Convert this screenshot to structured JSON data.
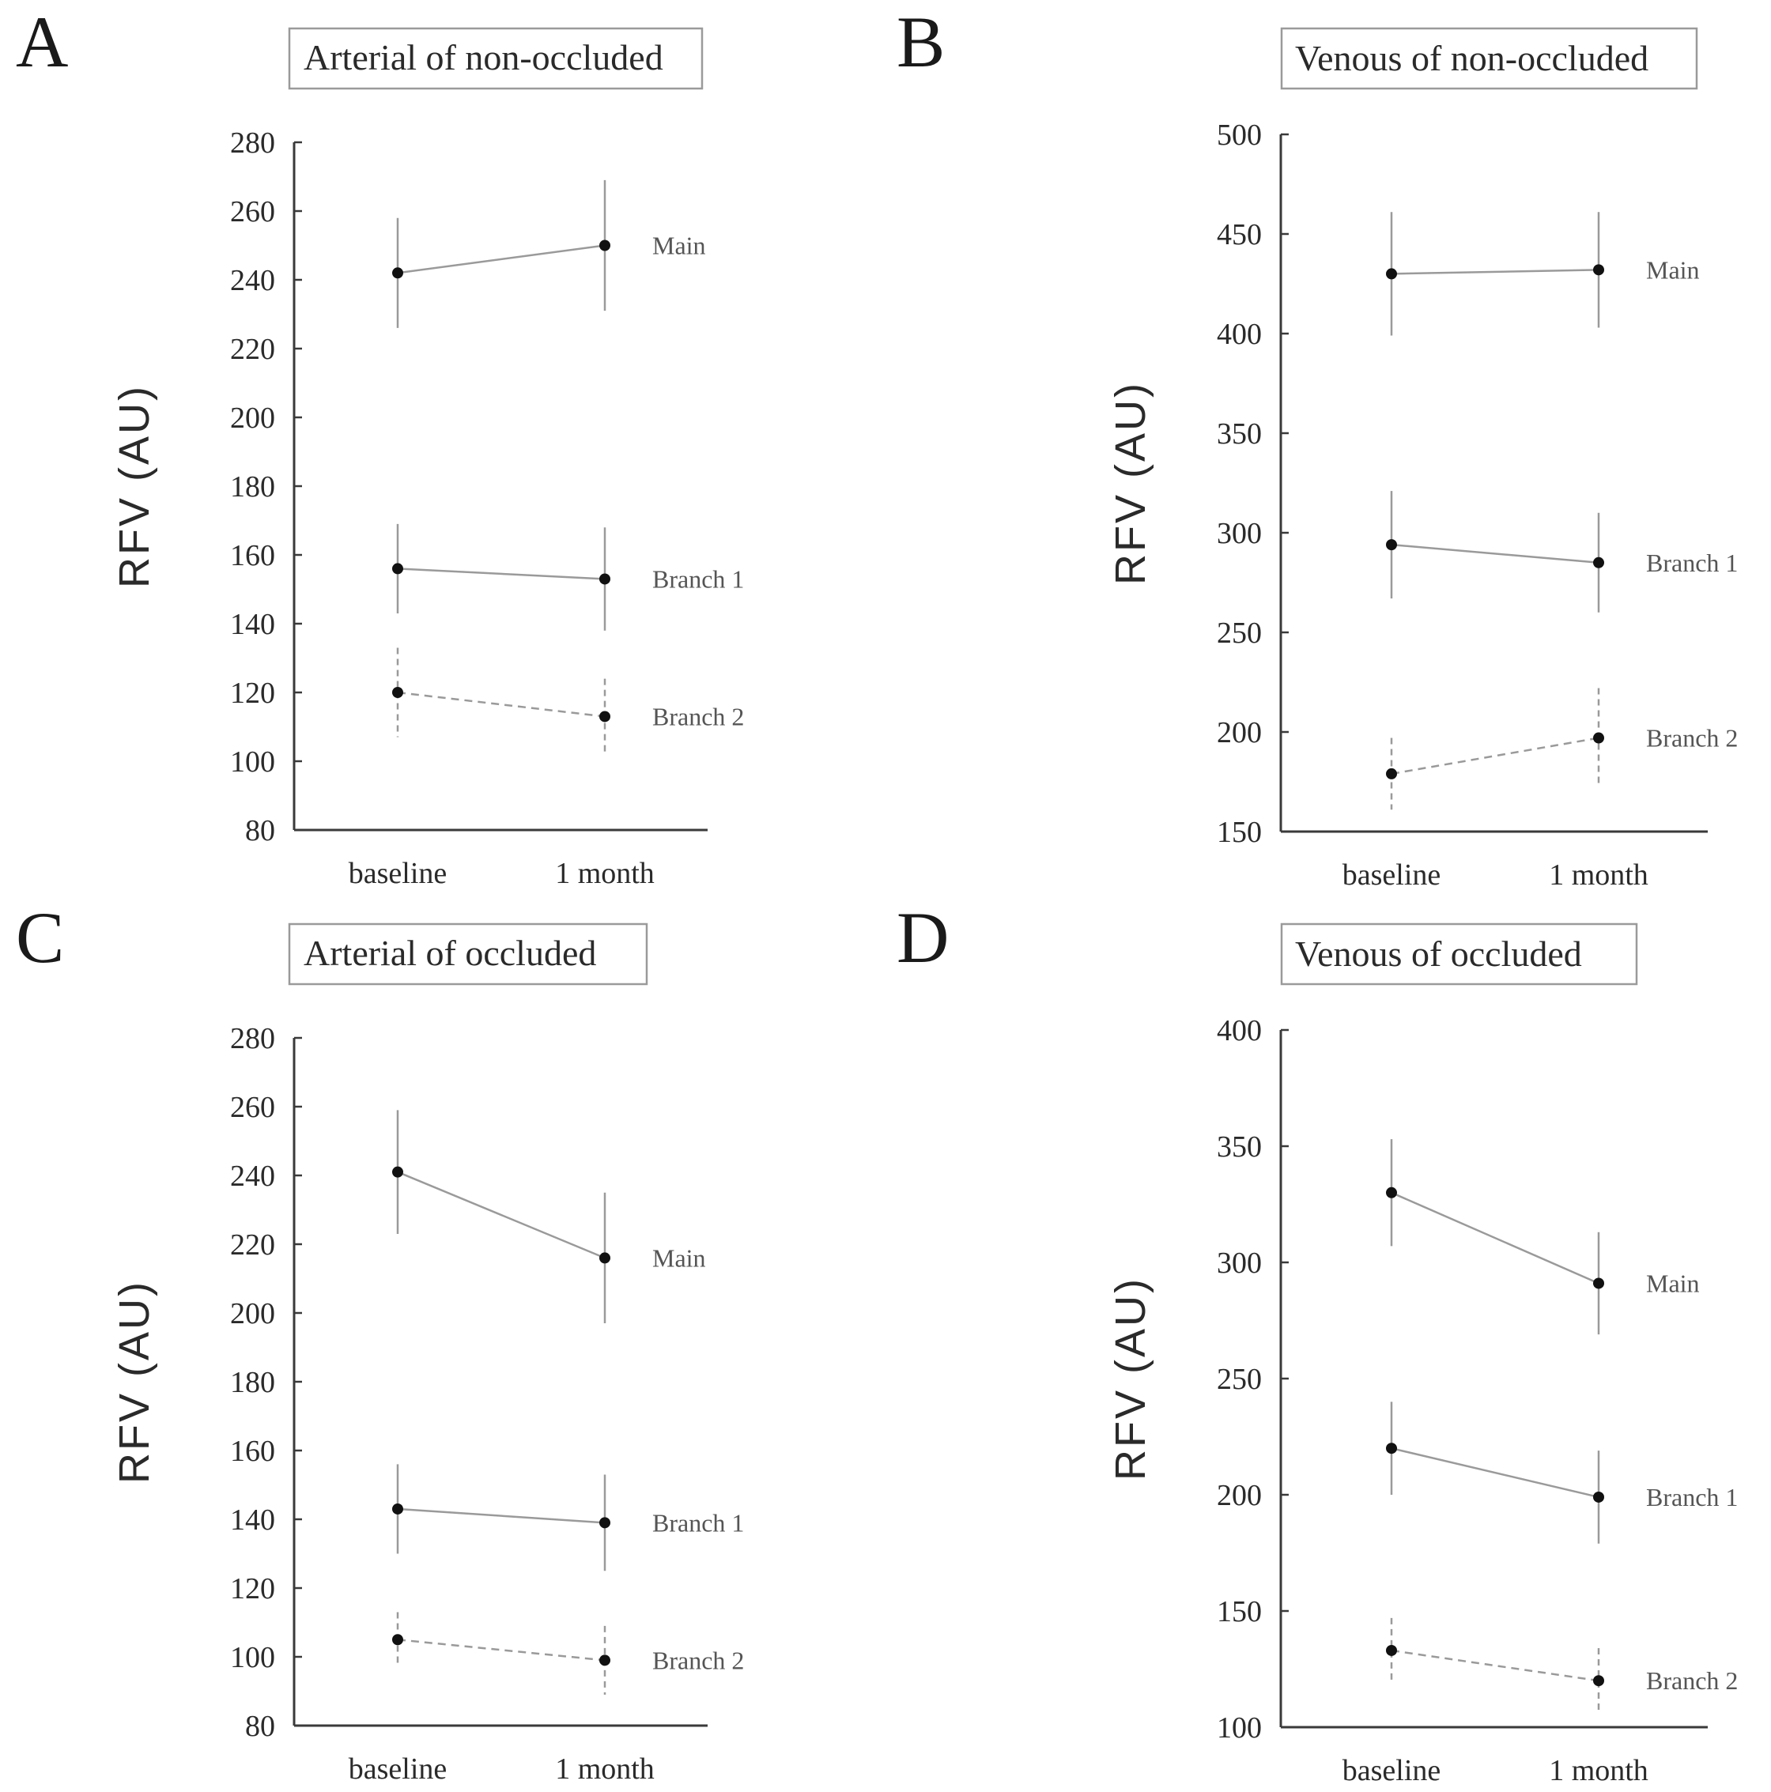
{
  "chart_data": [
    {
      "panel": "A",
      "type": "line",
      "title": "Arterial of non-occluded",
      "ylabel": "RFV (AU)",
      "xlabel": "",
      "categories": [
        "baseline",
        "1 month"
      ],
      "ylim": [
        80,
        280
      ],
      "yticks": [
        80,
        100,
        120,
        140,
        160,
        180,
        200,
        220,
        240,
        260,
        280
      ],
      "series": [
        {
          "name": "Main",
          "values": [
            242,
            250
          ],
          "error": [
            16,
            19
          ],
          "style": "solid"
        },
        {
          "name": "Branch 1",
          "values": [
            156,
            153
          ],
          "error": [
            13,
            15
          ],
          "style": "solid"
        },
        {
          "name": "Branch 2",
          "values": [
            120,
            113
          ],
          "error": [
            13,
            11
          ],
          "style": "dashed"
        }
      ]
    },
    {
      "panel": "B",
      "type": "line",
      "title": "Venous of non-occluded",
      "ylabel": "RFV (AU)",
      "xlabel": "",
      "categories": [
        "baseline",
        "1 month"
      ],
      "ylim": [
        150,
        500
      ],
      "yticks": [
        150,
        200,
        250,
        300,
        350,
        400,
        450,
        500
      ],
      "series": [
        {
          "name": "Main",
          "values": [
            430,
            432
          ],
          "error": [
            31,
            29
          ],
          "style": "solid"
        },
        {
          "name": "Branch 1",
          "values": [
            294,
            285
          ],
          "error": [
            27,
            25
          ],
          "style": "solid"
        },
        {
          "name": "Branch 2",
          "values": [
            179,
            197
          ],
          "error": [
            18,
            25
          ],
          "style": "dashed"
        }
      ]
    },
    {
      "panel": "C",
      "type": "line",
      "title": "Arterial of occluded",
      "ylabel": "RFV (AU)",
      "xlabel": "",
      "categories": [
        "baseline",
        "1 month"
      ],
      "ylim": [
        80,
        280
      ],
      "yticks": [
        80,
        100,
        120,
        140,
        160,
        180,
        200,
        220,
        240,
        260,
        280
      ],
      "series": [
        {
          "name": "Main",
          "values": [
            241,
            216
          ],
          "error": [
            18,
            19
          ],
          "style": "solid"
        },
        {
          "name": "Branch 1",
          "values": [
            143,
            139
          ],
          "error": [
            13,
            14
          ],
          "style": "solid"
        },
        {
          "name": "Branch 2",
          "values": [
            105,
            99
          ],
          "error": [
            8,
            10
          ],
          "style": "dashed"
        }
      ]
    },
    {
      "panel": "D",
      "type": "line",
      "title": "Venous of occluded",
      "ylabel": "RFV (AU)",
      "xlabel": "",
      "categories": [
        "baseline",
        "1 month"
      ],
      "ylim": [
        100,
        400
      ],
      "yticks": [
        100,
        150,
        200,
        250,
        300,
        350,
        400
      ],
      "series": [
        {
          "name": "Main",
          "values": [
            330,
            291
          ],
          "error": [
            23,
            22
          ],
          "style": "solid"
        },
        {
          "name": "Branch 1",
          "values": [
            220,
            199
          ],
          "error": [
            20,
            20
          ],
          "style": "solid"
        },
        {
          "name": "Branch 2",
          "values": [
            133,
            120
          ],
          "error": [
            14,
            14
          ],
          "style": "dashed"
        }
      ]
    }
  ]
}
